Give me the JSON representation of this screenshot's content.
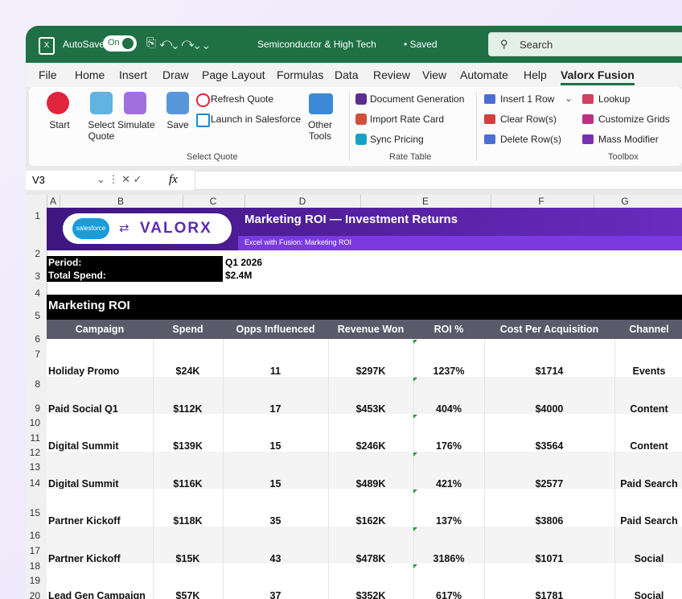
{
  "titlebar": {
    "autosave": "AutoSave",
    "toggle": "On",
    "document": "Semiconductor & High Tech",
    "status": "• Saved",
    "search": "Search"
  },
  "tabs": [
    "File",
    "Home",
    "Insert",
    "Draw",
    "Page Layout",
    "Formulas",
    "Data",
    "Review",
    "View",
    "Automate",
    "Help",
    "Valorx Fusion"
  ],
  "ribbon": {
    "select_quote": {
      "buttons": [
        "Start",
        "Select Quote",
        "Simulate",
        "Save"
      ],
      "small": [
        "Refresh Quote",
        "Launch in Salesforce"
      ],
      "other": "Other Tools",
      "label": "Select Quote"
    },
    "rate_table": {
      "items": [
        "Document Generation",
        "Import Rate Card",
        "Sync Pricing"
      ],
      "label": "Rate Table"
    },
    "toolbox": {
      "items": [
        "Insert 1 Row",
        "Clear Row(s)",
        "Delete Row(s)",
        "Lookup",
        "Customize Grids",
        "Mass Modifier"
      ],
      "label": "Toolbox"
    }
  },
  "formula_bar": {
    "cell": "V3",
    "fx": "fx"
  },
  "columns": [
    "A",
    "B",
    "C",
    "D",
    "E",
    "F",
    "G"
  ],
  "row_numbers": [
    "1",
    "2",
    "3",
    "4",
    "5",
    "6",
    "7",
    "8",
    "9",
    "10",
    "11",
    "12",
    "13",
    "14",
    "15",
    "16",
    "17",
    "18",
    "19",
    "20"
  ],
  "banner": {
    "logo": "salesforce",
    "brand": "VALORX",
    "title": "Marketing ROI — Investment Returns",
    "subtitle": "Excel with Fusion: Marketing ROI"
  },
  "info": [
    [
      "Period:",
      "Q1 2026"
    ],
    [
      "Total Spend:",
      "$2.4M"
    ]
  ],
  "section": "Marketing ROI",
  "table": {
    "headers": [
      "Campaign",
      "Spend",
      "Opps Influenced",
      "Revenue Won",
      "ROI %",
      "Cost Per Acquisition",
      "Channel"
    ],
    "rows": [
      [
        "Holiday Promo",
        "$24K",
        "11",
        "$297K",
        "1237%",
        "$1714",
        "Events"
      ],
      [
        "Paid Social Q1",
        "$112K",
        "17",
        "$453K",
        "404%",
        "$4000",
        "Content"
      ],
      [
        "Digital Summit",
        "$139K",
        "15",
        "$246K",
        "176%",
        "$3564",
        "Content"
      ],
      [
        "Digital Summit",
        "$116K",
        "15",
        "$489K",
        "421%",
        "$2577",
        "Paid Search"
      ],
      [
        "Partner Kickoff",
        "$118K",
        "35",
        "$162K",
        "137%",
        "$3806",
        "Paid Search"
      ],
      [
        "Partner Kickoff",
        "$15K",
        "43",
        "$478K",
        "3186%",
        "$1071",
        "Social"
      ],
      [
        "Lead Gen Campaign",
        "$57K",
        "37",
        "$352K",
        "617%",
        "$1781",
        "Social"
      ]
    ]
  }
}
